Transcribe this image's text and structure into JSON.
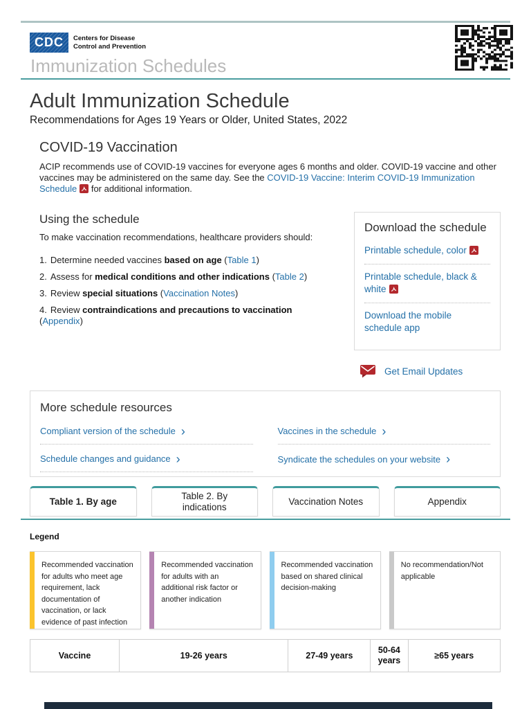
{
  "header": {
    "logo": {
      "acronym": "CDC",
      "org_line1": "Centers for Disease",
      "org_line2": "Control and Prevention"
    },
    "site_title": "Immunization Schedules"
  },
  "page": {
    "title": "Adult Immunization Schedule",
    "subtitle": "Recommendations for Ages 19 Years or Older, United States, 2022"
  },
  "covid_section": {
    "heading": "COVID-19 Vaccination",
    "text_before_link": "ACIP recommends use of COVID-19 vaccines for everyone ages 6 months and older. COVID-19 vaccine and other vaccines may be administered on the same day. See the ",
    "link": "COVID-19 Vaccine: Interim COVID-19 Immunization Schedule",
    "text_after_link": " for additional information."
  },
  "using": {
    "heading": "Using the schedule",
    "intro": "To make vaccination recommendations, healthcare providers should:",
    "steps": [
      {
        "num": "1.",
        "pre": "Determine needed vaccines ",
        "bold": "based on age",
        "mid": " (",
        "link": "Table 1",
        "post": ")"
      },
      {
        "num": "2.",
        "pre": "Assess for ",
        "bold": "medical conditions and other indications",
        "mid": " (",
        "link": "Table 2",
        "post": ")"
      },
      {
        "num": "3.",
        "pre": "Review ",
        "bold": "special situations",
        "mid": " (",
        "link": "Vaccination Notes",
        "post": ")"
      },
      {
        "num": "4.",
        "pre": "Review ",
        "bold": "contraindications and precautions to vaccination",
        "mid": " (",
        "link": "Appendix",
        "post": ")"
      }
    ]
  },
  "download": {
    "heading": "Download the schedule",
    "links": [
      {
        "label": "Printable schedule, color"
      },
      {
        "label": "Printable schedule, black & white"
      },
      {
        "label": "Download the mobile schedule app"
      }
    ],
    "email_link": "Get Email Updates"
  },
  "resources": {
    "heading": "More schedule resources",
    "links": [
      {
        "label": "Compliant version of the schedule"
      },
      {
        "label": "Vaccines in the schedule"
      },
      {
        "label": "Schedule changes and guidance"
      },
      {
        "label": "Syndicate the schedules on your website"
      }
    ]
  },
  "tabs": [
    {
      "label": "Table 1. By age"
    },
    {
      "label": "Table 2. By indications"
    },
    {
      "label": "Vaccination Notes"
    },
    {
      "label": "Appendix"
    }
  ],
  "legend": {
    "heading": "Legend",
    "items": [
      {
        "color": "#FBC42D",
        "text": "Recommended vaccination for adults who meet age requirement, lack documentation of vaccination, or lack evidence of past infection"
      },
      {
        "color": "#B584B2",
        "text": "Recommended vaccination for adults with an additional risk factor or another indication"
      },
      {
        "color": "#8FCDEF",
        "text": "Recommended vaccination based on shared clinical decision-making"
      },
      {
        "color": "#C9C9C9",
        "text": "No recommendation/Not applicable"
      }
    ]
  },
  "table": {
    "columns": [
      "Vaccine",
      "19-26 years",
      "27-49 years",
      "50-64 years",
      "≥65 years"
    ]
  },
  "colors": {
    "accent_teal": "#4a9d9f",
    "link_blue": "#2470a8",
    "pdf_red": "#b3282d",
    "logo_blue": "#19599e"
  }
}
